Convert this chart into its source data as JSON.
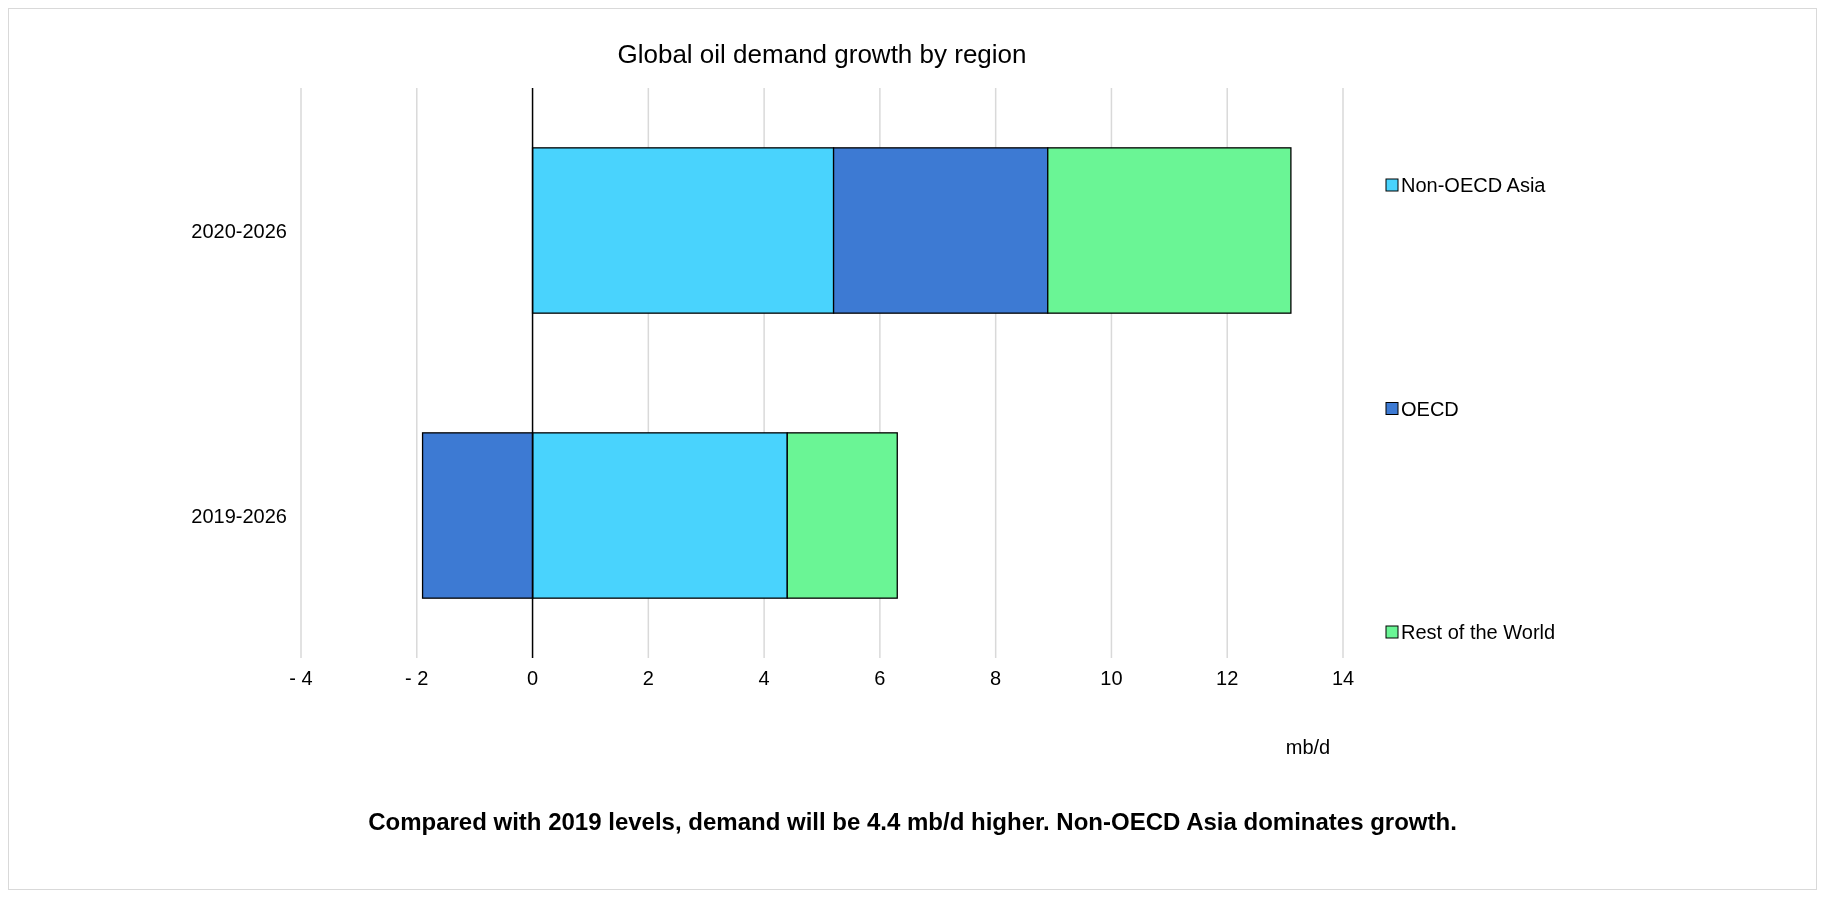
{
  "chart_data": {
    "type": "bar",
    "orientation": "horizontal",
    "stacked": true,
    "title": "Global oil demand growth by region",
    "xlabel": "mb/d",
    "categories": [
      "2020-2026",
      "2019-2026"
    ],
    "series": [
      {
        "name": "Non-OECD Asia",
        "color": "#49d3fd",
        "values": [
          5.2,
          4.4
        ]
      },
      {
        "name": "OECD",
        "color": "#3d7ad3",
        "values": [
          3.7,
          -1.9
        ]
      },
      {
        "name": "Rest of the World",
        "color": "#6af595",
        "values": [
          4.2,
          1.9
        ]
      }
    ],
    "xlim": [
      -4,
      14
    ],
    "xticks": [
      {
        "value": -4,
        "label": "- 4"
      },
      {
        "value": -2,
        "label": "- 2"
      },
      0,
      2,
      4,
      6,
      8,
      10,
      12,
      14
    ],
    "grid": "x",
    "legend": "right",
    "annotations": [
      "Compared with 2019 levels, demand will be 4.4 mb/d higher. Non-OECD Asia dominates growth."
    ]
  }
}
